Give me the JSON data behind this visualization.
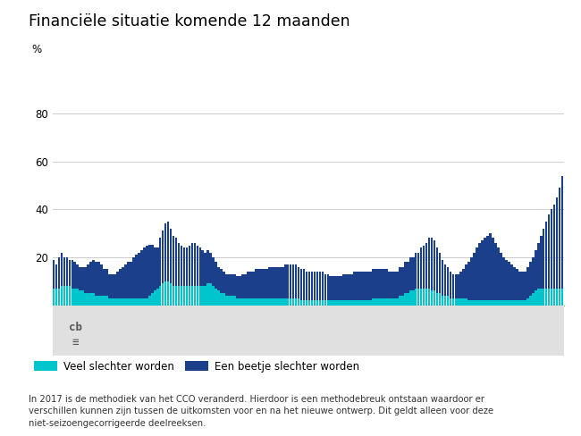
{
  "title": "Financiële situatie komende 12 maanden",
  "ylabel": "%",
  "ylim": [
    0,
    100
  ],
  "yticks": [
    20,
    40,
    60,
    80
  ],
  "color_cyan": "#00C5CD",
  "color_blue": "#1B3F8B",
  "legend1": "Veel slechter worden",
  "legend2": "Een beetje slechter worden",
  "footnote": "In 2017 is de methodiek van het CCO veranderd. Hierdoor is een methodebreuk ontstaan waardoor er\nverschillen kunnen zijn tussen de uitkomsten voor en na het nieuwe ontwerp. Dit geldt alleen voor deze\nniet-seizoengecorrigeerde deelreeksen.",
  "cyan_data": [
    7,
    7,
    7,
    8,
    8,
    8,
    8,
    7,
    7,
    7,
    6,
    6,
    5,
    5,
    5,
    5,
    4,
    4,
    4,
    4,
    4,
    3,
    3,
    3,
    3,
    3,
    3,
    3,
    3,
    3,
    3,
    3,
    3,
    3,
    3,
    3,
    4,
    5,
    6,
    7,
    8,
    9,
    10,
    10,
    9,
    8,
    8,
    8,
    8,
    8,
    8,
    8,
    8,
    8,
    8,
    8,
    8,
    8,
    9,
    9,
    8,
    7,
    6,
    5,
    5,
    4,
    4,
    4,
    4,
    3,
    3,
    3,
    3,
    3,
    3,
    3,
    3,
    3,
    3,
    3,
    3,
    3,
    3,
    3,
    3,
    3,
    3,
    3,
    3,
    3,
    3,
    3,
    3,
    2,
    2,
    2,
    2,
    2,
    2,
    2,
    2,
    2,
    2,
    2,
    2,
    2,
    2,
    2,
    2,
    2,
    2,
    2,
    2,
    2,
    2,
    2,
    2,
    2,
    2,
    2,
    3,
    3,
    3,
    3,
    3,
    3,
    3,
    3,
    3,
    3,
    4,
    4,
    5,
    5,
    6,
    6,
    7,
    7,
    7,
    7,
    7,
    7,
    6,
    6,
    5,
    5,
    4,
    4,
    4,
    3,
    3,
    3,
    3,
    3,
    3,
    3,
    2,
    2,
    2,
    2,
    2,
    2,
    2,
    2,
    2,
    2,
    2,
    2,
    2,
    2,
    2,
    2,
    2,
    2,
    2,
    2,
    2,
    2,
    3,
    4,
    5,
    6,
    7,
    7,
    7,
    7,
    7,
    7,
    7,
    7,
    7,
    7
  ],
  "blue_data": [
    12,
    10,
    13,
    14,
    12,
    12,
    11,
    12,
    11,
    10,
    10,
    10,
    11,
    12,
    13,
    14,
    14,
    14,
    13,
    11,
    11,
    10,
    10,
    10,
    11,
    12,
    13,
    14,
    15,
    15,
    17,
    18,
    19,
    20,
    21,
    22,
    21,
    20,
    18,
    17,
    20,
    22,
    24,
    25,
    23,
    21,
    20,
    18,
    17,
    16,
    16,
    17,
    18,
    18,
    17,
    16,
    15,
    14,
    14,
    13,
    12,
    11,
    10,
    10,
    9,
    9,
    9,
    9,
    9,
    9,
    9,
    10,
    10,
    11,
    11,
    11,
    12,
    12,
    12,
    12,
    12,
    13,
    13,
    13,
    13,
    13,
    13,
    14,
    14,
    14,
    14,
    14,
    13,
    13,
    13,
    12,
    12,
    12,
    12,
    12,
    12,
    12,
    11,
    11,
    10,
    10,
    10,
    10,
    10,
    11,
    11,
    11,
    11,
    12,
    12,
    12,
    12,
    12,
    12,
    12,
    12,
    12,
    12,
    12,
    12,
    12,
    11,
    11,
    11,
    11,
    12,
    12,
    13,
    13,
    14,
    14,
    15,
    15,
    17,
    18,
    19,
    21,
    22,
    21,
    19,
    17,
    15,
    13,
    12,
    11,
    10,
    10,
    10,
    11,
    12,
    14,
    16,
    18,
    20,
    22,
    24,
    25,
    26,
    27,
    28,
    26,
    24,
    22,
    20,
    18,
    17,
    16,
    15,
    14,
    13,
    12,
    12,
    12,
    13,
    14,
    15,
    17,
    19,
    22,
    25,
    28,
    31,
    33,
    35,
    38,
    42,
    47
  ]
}
